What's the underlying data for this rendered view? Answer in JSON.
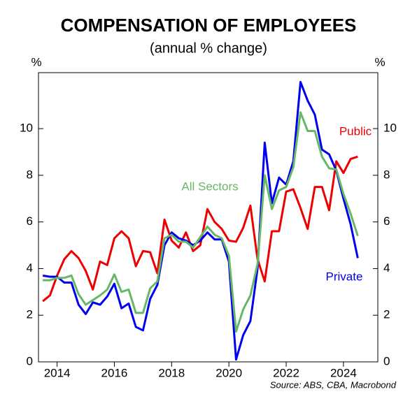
{
  "chart_data": {
    "type": "line",
    "title": "COMPENSATION OF EMPLOYEES",
    "subtitle": "(annual % change)",
    "y_label": "%",
    "y2_label": "%",
    "source": "Source: ABS, CBA, Macrobond",
    "x": [
      2013.5,
      2013.75,
      2014,
      2014.25,
      2014.5,
      2014.75,
      2015,
      2015.25,
      2015.5,
      2015.75,
      2016,
      2016.25,
      2016.5,
      2016.75,
      2017,
      2017.25,
      2017.5,
      2017.75,
      2018,
      2018.25,
      2018.5,
      2018.75,
      2019,
      2019.25,
      2019.5,
      2019.75,
      2020,
      2020.25,
      2020.5,
      2020.75,
      2021,
      2021.25,
      2021.5,
      2021.75,
      2022,
      2022.25,
      2022.5,
      2022.75,
      2023,
      2023.25,
      2023.5,
      2023.75,
      2024,
      2024.25,
      2024.5
    ],
    "series": [
      {
        "name": "Public",
        "color": "#ee0000",
        "values": [
          2.6,
          2.85,
          3.7,
          4.4,
          4.75,
          4.45,
          3.9,
          3.1,
          4.3,
          4.15,
          5.3,
          5.6,
          5.3,
          4.1,
          4.75,
          4.7,
          3.8,
          6.1,
          5.2,
          4.9,
          5.55,
          4.75,
          5.0,
          6.55,
          6.0,
          5.7,
          5.2,
          5.15,
          5.75,
          6.7,
          4.4,
          3.45,
          5.6,
          5.6,
          7.3,
          7.4,
          6.6,
          5.7,
          7.5,
          7.5,
          6.5,
          8.6,
          8.1,
          8.7,
          8.8
        ]
      },
      {
        "name": "Private",
        "color": "#0000ee",
        "values": [
          3.7,
          3.65,
          3.65,
          3.4,
          3.4,
          2.45,
          2.05,
          2.55,
          2.45,
          2.8,
          3.35,
          2.3,
          2.5,
          1.5,
          1.35,
          2.7,
          3.3,
          5.0,
          5.55,
          5.3,
          5.2,
          5.0,
          5.2,
          5.55,
          5.25,
          5.25,
          4.3,
          0.1,
          1.15,
          1.75,
          4.0,
          9.4,
          6.8,
          7.9,
          7.6,
          8.6,
          12.0,
          11.2,
          10.6,
          9.1,
          8.9,
          8.2,
          7.0,
          5.9,
          4.45
        ]
      },
      {
        "name": "All Sectors",
        "color": "#66b866",
        "values": [
          3.5,
          3.5,
          3.6,
          3.6,
          3.7,
          2.9,
          2.45,
          2.65,
          2.85,
          3.1,
          3.75,
          3.0,
          3.1,
          2.1,
          2.1,
          3.15,
          3.45,
          5.3,
          5.45,
          5.15,
          5.15,
          4.9,
          5.35,
          5.8,
          5.45,
          5.3,
          4.55,
          1.3,
          2.25,
          2.85,
          4.2,
          8.0,
          6.55,
          7.35,
          7.5,
          8.35,
          10.7,
          9.9,
          9.9,
          8.8,
          8.3,
          8.25,
          7.2,
          6.35,
          5.4
        ]
      }
    ],
    "xlim": [
      2013.35,
      2025.2
    ],
    "xticks": [
      2014,
      2016,
      2018,
      2020,
      2022,
      2024
    ],
    "ylim": [
      0,
      12.4
    ],
    "yticks": [
      0,
      2,
      4,
      6,
      8,
      10
    ],
    "y2lim": [
      0,
      12.4
    ],
    "y2ticks": [
      0,
      2,
      4,
      6,
      8,
      10
    ]
  }
}
